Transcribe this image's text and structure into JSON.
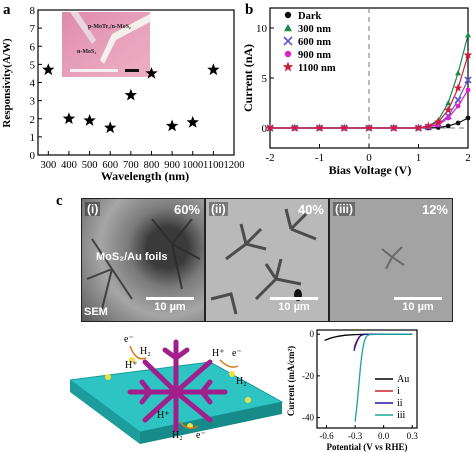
{
  "panels": {
    "a": "a",
    "b": "b",
    "c": "c"
  },
  "panel_a": {
    "inset_labels": [
      "p-MoTe₂/n-MoS₂",
      "n-MoS₂"
    ],
    "chart_data": {
      "type": "scatter",
      "xlabel": "Wavelength (nm)",
      "ylabel": "Responsivity(A/W)",
      "x_ticks": [
        "300",
        "400",
        "500",
        "600",
        "700",
        "800",
        "900",
        "1000",
        "1100",
        "1200"
      ],
      "y_ticks": [
        "0",
        "1",
        "2",
        "3",
        "4",
        "5",
        "6",
        "7",
        "8"
      ],
      "xlim": [
        250,
        1200
      ],
      "ylim": [
        0,
        8
      ],
      "marker": "star",
      "x": [
        300,
        400,
        500,
        600,
        700,
        800,
        900,
        1000,
        1100
      ],
      "y": [
        4.7,
        2.0,
        1.9,
        1.5,
        3.3,
        4.5,
        1.6,
        1.8,
        4.7
      ]
    }
  },
  "panel_b": {
    "chart_data": {
      "type": "line",
      "xlabel": "Bias Voltage (V)",
      "ylabel": "Current (nA)",
      "x_ticks": [
        "-2",
        "-1",
        "0",
        "1",
        "2"
      ],
      "y_ticks": [
        "0",
        "5",
        "10"
      ],
      "xlim": [
        -2,
        2
      ],
      "ylim": [
        -2,
        12
      ],
      "series": [
        {
          "name": "Dark",
          "color": "#111111",
          "marker": "circle",
          "x": [
            -2,
            -1.5,
            -1,
            -0.5,
            0,
            0.5,
            1,
            1.2,
            1.4,
            1.6,
            1.8,
            2.0
          ],
          "y": [
            0,
            0,
            0,
            0,
            0,
            0,
            0,
            0,
            0.05,
            0.2,
            0.5,
            1.0
          ]
        },
        {
          "name": "300 nm",
          "color": "#1a8a4a",
          "marker": "triangle",
          "x": [
            -2,
            -1.5,
            -1,
            -0.5,
            0,
            0.5,
            1,
            1.2,
            1.4,
            1.6,
            1.8,
            2.0
          ],
          "y": [
            0,
            0,
            0,
            0,
            0,
            0,
            0,
            0.2,
            0.8,
            2.5,
            5.5,
            9.3
          ]
        },
        {
          "name": "600 nm",
          "color": "#5a5ad0",
          "marker": "x",
          "x": [
            -2,
            -1.5,
            -1,
            -0.5,
            0,
            0.5,
            1,
            1.2,
            1.4,
            1.6,
            1.8,
            2.0
          ],
          "y": [
            0,
            0,
            0,
            0,
            0,
            0,
            0,
            0.1,
            0.4,
            1.2,
            2.8,
            4.8
          ]
        },
        {
          "name": "900 nm",
          "color": "#e020c8",
          "marker": "circle",
          "x": [
            -2,
            -1.5,
            -1,
            -0.5,
            0,
            0.5,
            1,
            1.2,
            1.4,
            1.6,
            1.8,
            2.0
          ],
          "y": [
            0,
            0,
            0,
            0,
            0,
            0,
            0,
            0.1,
            0.3,
            1.0,
            2.2,
            3.8
          ]
        },
        {
          "name": "1100 nm",
          "color": "#cc1d3a",
          "marker": "star",
          "x": [
            -2,
            -1.5,
            -1,
            -0.5,
            0,
            0.5,
            1,
            1.2,
            1.4,
            1.6,
            1.8,
            2.0
          ],
          "y": [
            0,
            0,
            0,
            0,
            0,
            0,
            0,
            0.2,
            0.6,
            1.8,
            4.0,
            7.3
          ]
        }
      ]
    }
  },
  "panel_c": {
    "sem": [
      {
        "label": "(i)",
        "percent": "60%",
        "scale": "10 µm",
        "caption": "MoS₂/Au foils",
        "footer": "SEM"
      },
      {
        "label": "(ii)",
        "percent": "40%",
        "scale": "10 µm"
      },
      {
        "label": "(iii)",
        "percent": "12%",
        "scale": "10 µm"
      }
    ],
    "schematic_labels": [
      "e⁻",
      "H₂",
      "H⁺",
      "H⁺",
      "e⁻",
      "H₂",
      "H⁺",
      "H₂",
      "e⁻"
    ],
    "chart_data": {
      "type": "line",
      "xlabel": "Potential (V vs RHE)",
      "ylabel": "Current (mA/cm²)",
      "x_ticks": [
        "-0.6",
        "-0.3",
        "0.0",
        "0.3"
      ],
      "y_ticks": [
        "0",
        "-20",
        "-40"
      ],
      "xlim": [
        -0.7,
        0.35
      ],
      "ylim": [
        -45,
        2
      ],
      "legend_position": "right",
      "series": [
        {
          "name": "Au",
          "color": "#000000",
          "x": [
            -0.62,
            -0.55,
            -0.48,
            -0.4,
            -0.3,
            -0.2,
            0.0,
            0.3
          ],
          "y": [
            -3.0,
            -1.8,
            -1.0,
            -0.5,
            -0.2,
            -0.05,
            0,
            0
          ]
        },
        {
          "name": "i",
          "color": "#d0202a",
          "x": [
            -0.31,
            -0.3,
            -0.28,
            -0.26,
            -0.24,
            -0.2,
            0.0,
            0.3
          ],
          "y": [
            -7,
            -5,
            -3,
            -1.5,
            -0.6,
            -0.1,
            0,
            0
          ]
        },
        {
          "name": "ii",
          "color": "#1a1aa0",
          "x": [
            -0.31,
            -0.3,
            -0.28,
            -0.26,
            -0.24,
            -0.2,
            0.0,
            0.3
          ],
          "y": [
            -8,
            -6,
            -3.5,
            -1.8,
            -0.6,
            -0.1,
            0,
            0
          ]
        },
        {
          "name": "iii",
          "color": "#1aa59a",
          "x": [
            -0.3,
            -0.28,
            -0.26,
            -0.24,
            -0.22,
            -0.2,
            -0.18,
            -0.15,
            0.0,
            0.3
          ],
          "y": [
            -42,
            -34,
            -24,
            -14,
            -7,
            -3,
            -1,
            -0.2,
            0,
            0
          ]
        }
      ]
    }
  }
}
